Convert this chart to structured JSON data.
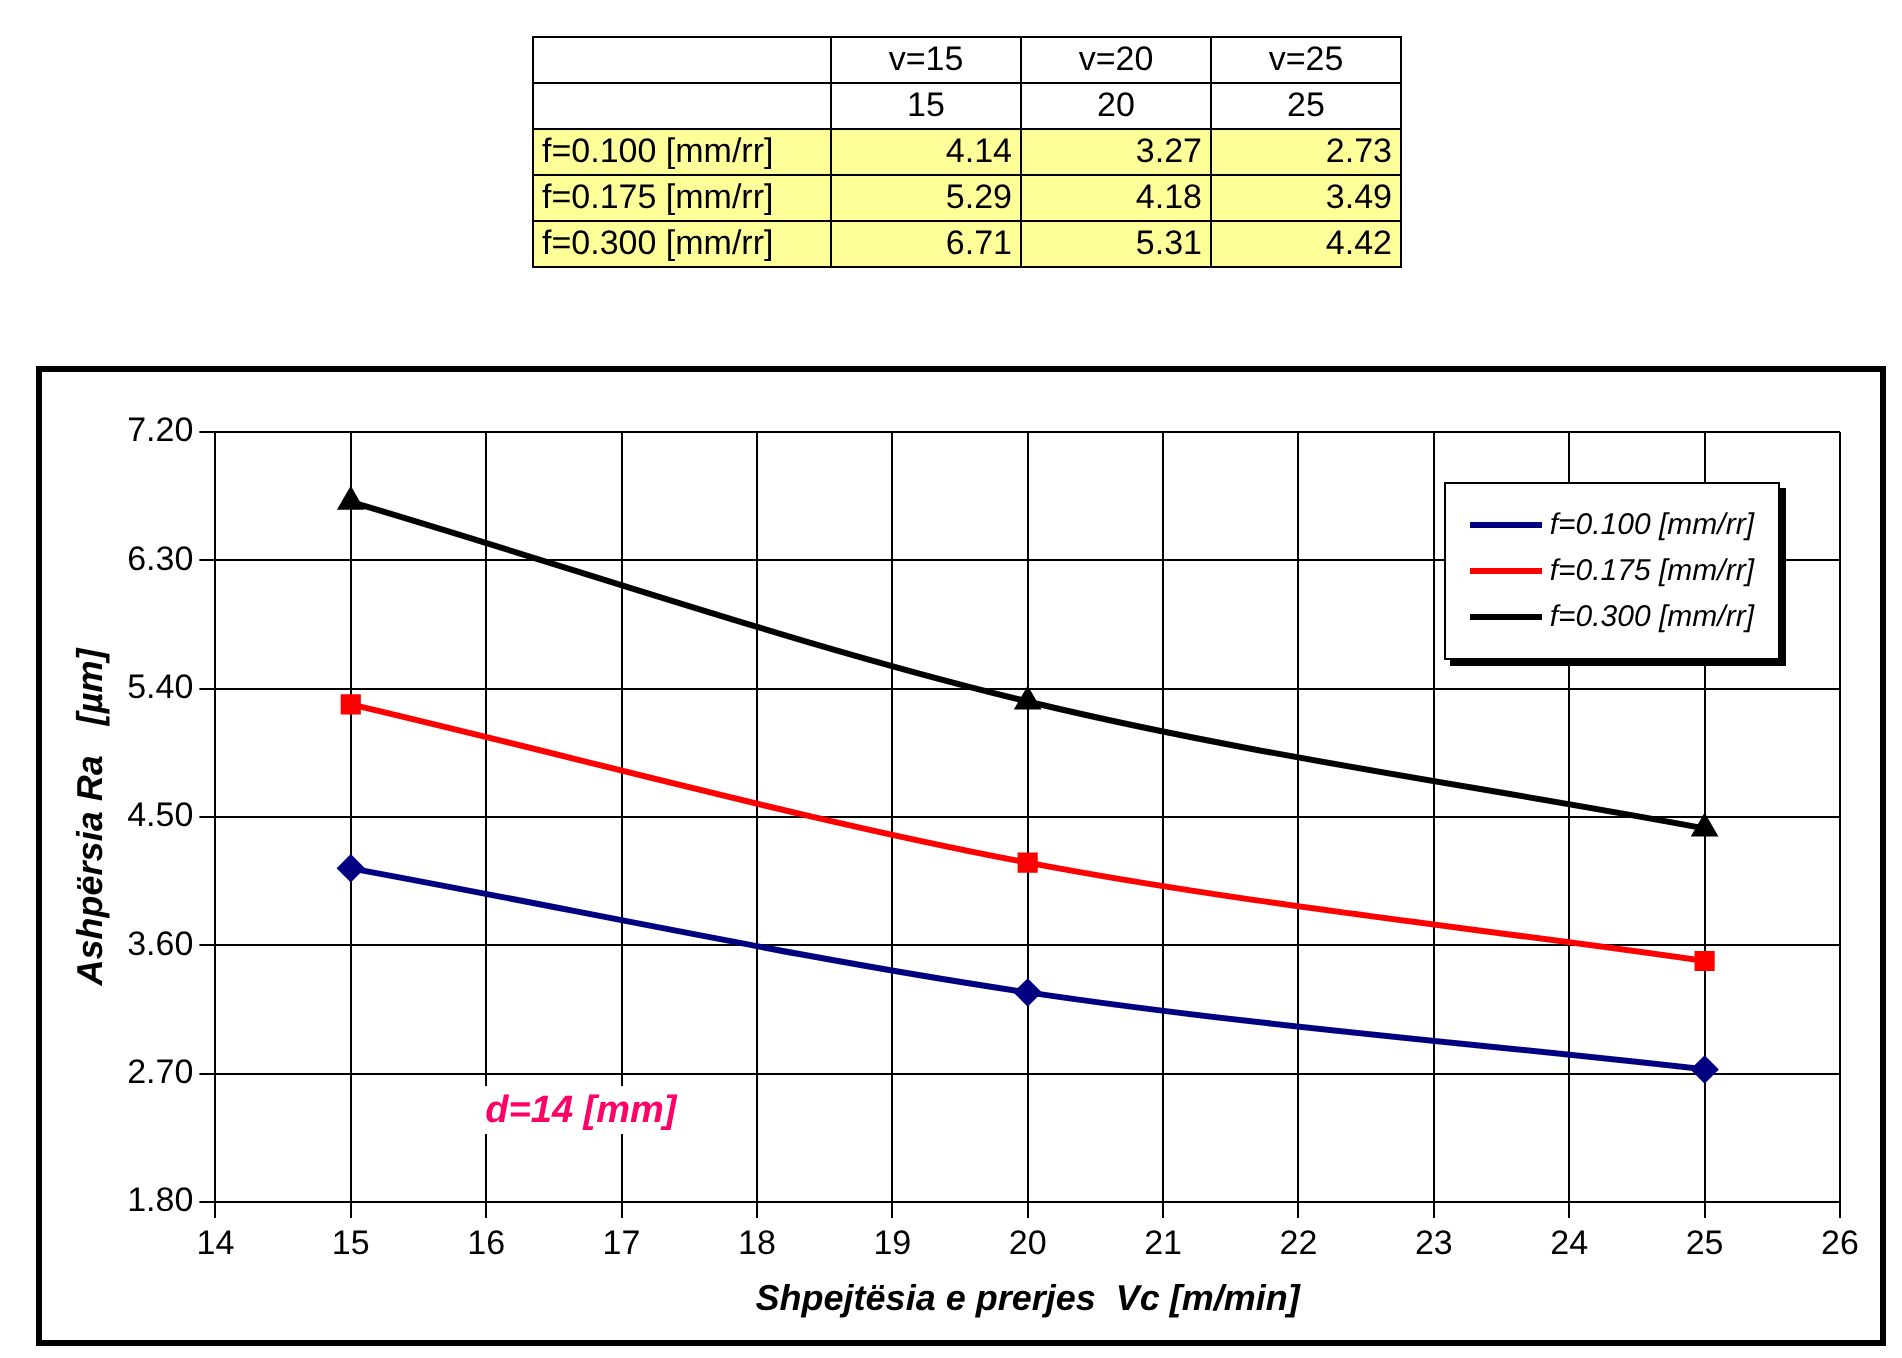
{
  "chart_data": [
    {
      "type": "heatmap",
      "categories": [
        "v=15",
        "v=20",
        "v=25"
      ],
      "y_categories": [
        "f=0.100 [mm/rr]",
        "f=0.175 [mm/rr]",
        "f=0.300 [mm/rr]"
      ],
      "cells": [
        [
          4.14,
          3.27,
          2.73
        ],
        [
          5.29,
          4.18,
          3.49
        ],
        [
          6.71,
          5.31,
          4.42
        ]
      ],
      "color": "#ffff99",
      "data_labels": true,
      "annotations": [
        "15",
        "20",
        "25"
      ]
    },
    {
      "type": "line",
      "xlabel": "Shpejtësia e prerjes  Vc [m/min]",
      "ylabel": "Ashpërsia Ra   [µm]",
      "x": [
        15,
        20,
        25
      ],
      "series": [
        {
          "name": "f=0.100 [mm/rr]",
          "color": "#000080",
          "marker": "diamond",
          "values": [
            4.14,
            3.27,
            2.73
          ]
        },
        {
          "name": "f=0.175 [mm/rr]",
          "color": "#ff0000",
          "marker": "square",
          "values": [
            5.29,
            4.18,
            3.49
          ]
        },
        {
          "name": "f=0.300 [mm/rr]",
          "color": "#000000",
          "marker": "triangle",
          "values": [
            6.71,
            5.31,
            4.42
          ]
        }
      ],
      "xlim": [
        14,
        26
      ],
      "xticks": [
        14,
        15,
        16,
        17,
        18,
        19,
        20,
        21,
        22,
        23,
        24,
        25,
        26
      ],
      "ylim": [
        1.8,
        7.2
      ],
      "yticks": [
        {
          "value": 1.8,
          "label": "1.80"
        },
        {
          "value": 2.7,
          "label": "2.70"
        },
        {
          "value": 3.6,
          "label": "3.60"
        },
        {
          "value": 4.5,
          "label": "4.50"
        },
        {
          "value": 5.4,
          "label": "5.40"
        },
        {
          "value": 6.3,
          "label": "6.30"
        },
        {
          "value": 7.2,
          "label": "7.20"
        }
      ],
      "grid": true,
      "legend": "top right",
      "annotations": [
        "d=14 [mm]"
      ]
    }
  ]
}
